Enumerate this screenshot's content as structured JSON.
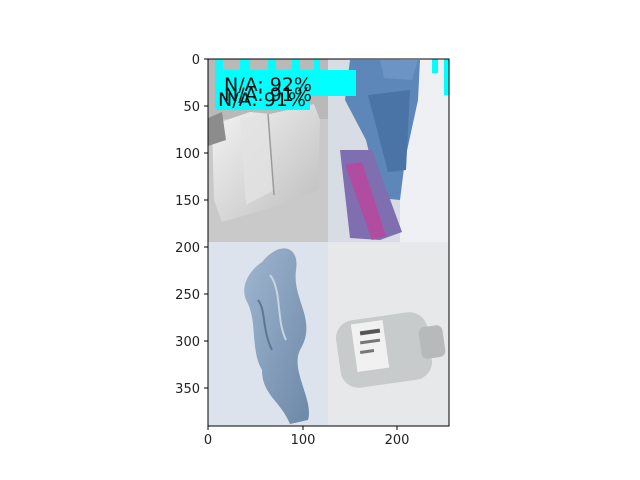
{
  "axes": {
    "xticks": [
      "0",
      "100",
      "200"
    ],
    "yticks": [
      "0",
      "50",
      "100",
      "150",
      "200",
      "250",
      "300",
      "350"
    ]
  },
  "overlay": {
    "color": "#00ffff",
    "labels": [
      "N/A: 91%",
      "N/A: 91%",
      "N/A: 92%"
    ]
  },
  "tiles": [
    {
      "name": "crumpled-paper-photo",
      "bg": "#c9c9c9"
    },
    {
      "name": "blue-cardboard-photo",
      "bg": "#d8dce4"
    },
    {
      "name": "blue-plastic-bag-photo",
      "bg": "#dde3ec"
    },
    {
      "name": "white-bottle-photo",
      "bg": "#e6e8ea"
    }
  ]
}
